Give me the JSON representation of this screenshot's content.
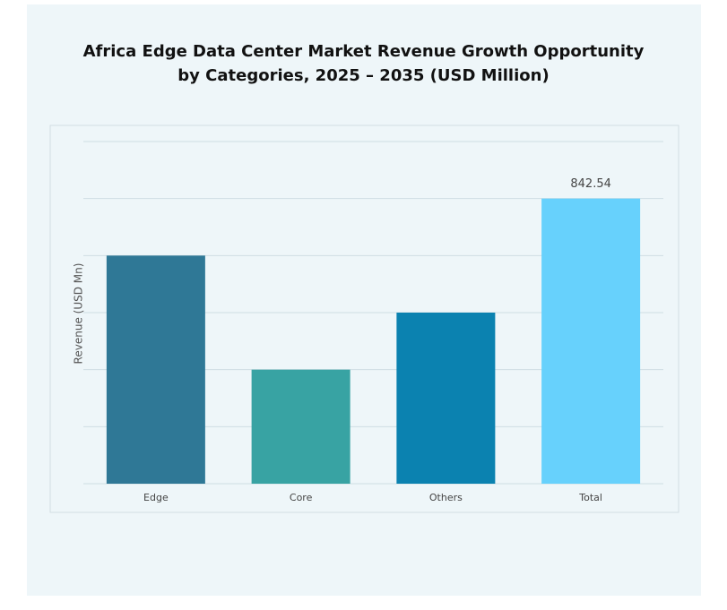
{
  "chart_data": {
    "type": "bar",
    "title": "Africa Edge Data Center Market Revenue Growth Opportunity by Categories, 2025 – 2035 (USD Million)",
    "y_label": "Revenue (USD Mn)",
    "categories": [
      "Edge",
      "Core",
      "Others",
      "Total"
    ],
    "values": [
      674,
      337,
      505.5,
      842.54
    ],
    "value_labels": [
      null,
      null,
      null,
      "842.54"
    ],
    "colors": [
      "#2f7896",
      "#38a3a3",
      "#0b82b0",
      "#67d1fc"
    ],
    "ylim": [
      0,
      1011
    ],
    "yticks": [
      0,
      168.5,
      337,
      505.5,
      674,
      842.5,
      1011
    ],
    "grid": true
  }
}
